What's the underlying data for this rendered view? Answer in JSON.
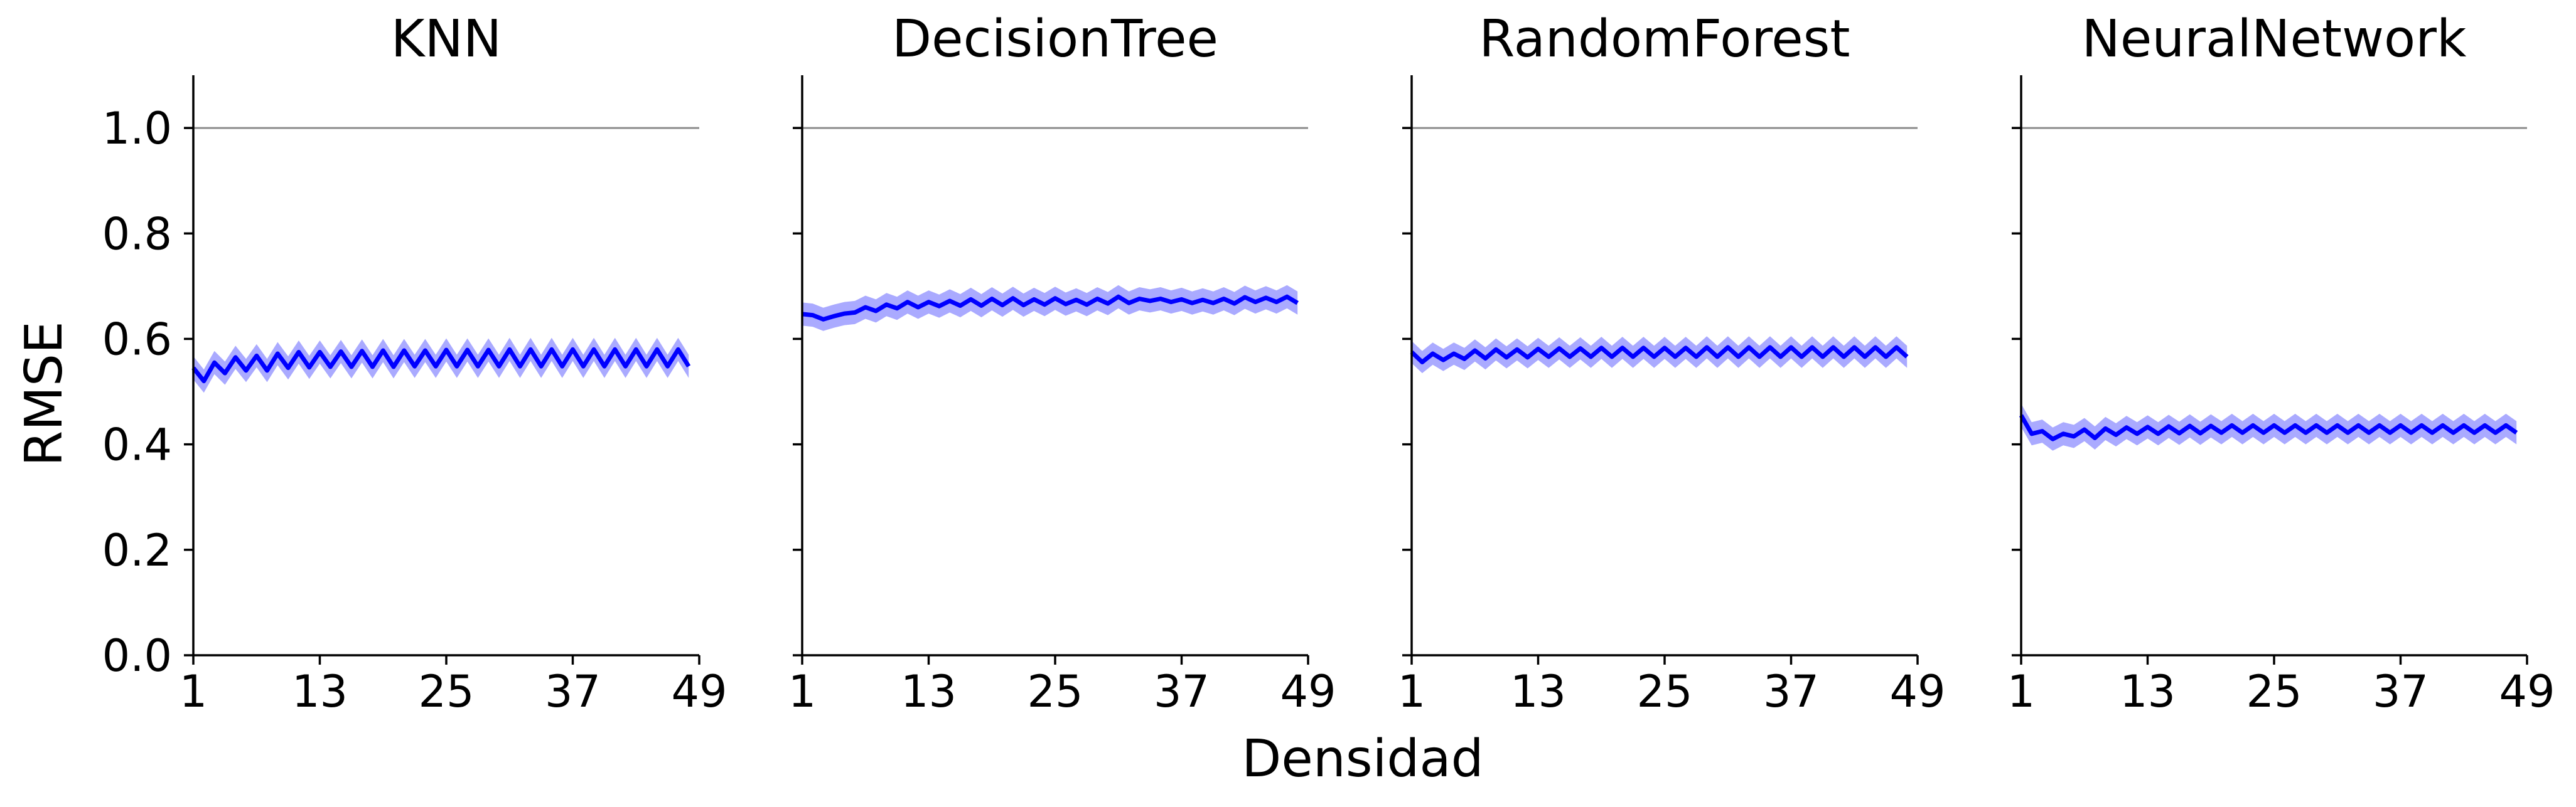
{
  "figure": {
    "xlabel": "Densidad",
    "ylabel": "RMSE",
    "colors": {
      "line": "#0000ff",
      "band": "#9b9bff",
      "reference": "#8c8c8c",
      "axis": "#000000"
    }
  },
  "chart_data": [
    {
      "type": "line",
      "title": "KNN",
      "xlabel": "Densidad",
      "ylabel": "RMSE",
      "xlim": [
        1,
        49
      ],
      "ylim": [
        0.0,
        1.1
      ],
      "xticks": [
        "1",
        "13",
        "25",
        "37",
        "49"
      ],
      "yticks": [
        "0.0",
        "0.2",
        "0.4",
        "0.6",
        "0.8",
        "1.0"
      ],
      "reference_line": 1.0,
      "grid": false,
      "x_start": 1,
      "x_step": 1,
      "series": [
        {
          "values": [
            0.545,
            0.52,
            0.555,
            0.535,
            0.565,
            0.54,
            0.568,
            0.54,
            0.572,
            0.545,
            0.575,
            0.546,
            0.575,
            0.547,
            0.576,
            0.547,
            0.577,
            0.547,
            0.578,
            0.547,
            0.578,
            0.548,
            0.578,
            0.548,
            0.579,
            0.548,
            0.579,
            0.548,
            0.579,
            0.548,
            0.58,
            0.548,
            0.58,
            0.548,
            0.58,
            0.548,
            0.58,
            0.548,
            0.58,
            0.548,
            0.58,
            0.548,
            0.58,
            0.548,
            0.58,
            0.548,
            0.58,
            0.548
          ],
          "band_halfwidth": 0.022
        }
      ]
    },
    {
      "type": "line",
      "title": "DecisionTree",
      "xlabel": "Densidad",
      "ylabel": "RMSE",
      "xlim": [
        1,
        49
      ],
      "ylim": [
        0.0,
        1.1
      ],
      "xticks": [
        "1",
        "13",
        "25",
        "37",
        "49"
      ],
      "yticks": [
        "0.0",
        "0.2",
        "0.4",
        "0.6",
        "0.8",
        "1.0"
      ],
      "reference_line": 1.0,
      "grid": false,
      "x_start": 1,
      "x_step": 1,
      "series": [
        {
          "values": [
            0.647,
            0.645,
            0.637,
            0.643,
            0.648,
            0.65,
            0.66,
            0.653,
            0.665,
            0.658,
            0.67,
            0.66,
            0.67,
            0.662,
            0.672,
            0.663,
            0.675,
            0.663,
            0.676,
            0.664,
            0.677,
            0.664,
            0.675,
            0.665,
            0.677,
            0.666,
            0.674,
            0.665,
            0.676,
            0.667,
            0.68,
            0.668,
            0.676,
            0.672,
            0.676,
            0.67,
            0.675,
            0.668,
            0.674,
            0.668,
            0.676,
            0.667,
            0.679,
            0.67,
            0.678,
            0.67,
            0.68,
            0.668
          ],
          "band_halfwidth": 0.022
        }
      ]
    },
    {
      "type": "line",
      "title": "RandomForest",
      "xlabel": "Densidad",
      "ylabel": "RMSE",
      "xlim": [
        1,
        49
      ],
      "ylim": [
        0.0,
        1.1
      ],
      "xticks": [
        "1",
        "13",
        "25",
        "37",
        "49"
      ],
      "yticks": [
        "0.0",
        "0.2",
        "0.4",
        "0.6",
        "0.8",
        "1.0"
      ],
      "reference_line": 1.0,
      "grid": false,
      "x_start": 1,
      "x_step": 1,
      "series": [
        {
          "values": [
            0.575,
            0.556,
            0.572,
            0.56,
            0.572,
            0.562,
            0.578,
            0.563,
            0.58,
            0.565,
            0.58,
            0.565,
            0.581,
            0.566,
            0.582,
            0.566,
            0.582,
            0.566,
            0.583,
            0.566,
            0.583,
            0.566,
            0.583,
            0.566,
            0.583,
            0.566,
            0.583,
            0.566,
            0.584,
            0.566,
            0.584,
            0.566,
            0.584,
            0.566,
            0.584,
            0.566,
            0.584,
            0.566,
            0.584,
            0.566,
            0.584,
            0.566,
            0.584,
            0.566,
            0.584,
            0.566,
            0.584,
            0.566
          ],
          "band_halfwidth": 0.021
        }
      ]
    },
    {
      "type": "line",
      "title": "NeuralNetwork",
      "xlabel": "Densidad",
      "ylabel": "RMSE",
      "xlim": [
        1,
        49
      ],
      "ylim": [
        0.0,
        1.1
      ],
      "xticks": [
        "1",
        "13",
        "25",
        "37",
        "49"
      ],
      "yticks": [
        "0.0",
        "0.2",
        "0.4",
        "0.6",
        "0.8",
        "1.0"
      ],
      "reference_line": 1.0,
      "grid": false,
      "x_start": 1,
      "x_step": 1,
      "series": [
        {
          "values": [
            0.455,
            0.42,
            0.425,
            0.41,
            0.42,
            0.415,
            0.428,
            0.412,
            0.43,
            0.418,
            0.432,
            0.42,
            0.433,
            0.42,
            0.434,
            0.421,
            0.435,
            0.421,
            0.435,
            0.422,
            0.436,
            0.422,
            0.436,
            0.422,
            0.436,
            0.422,
            0.436,
            0.422,
            0.436,
            0.422,
            0.436,
            0.422,
            0.436,
            0.422,
            0.436,
            0.422,
            0.436,
            0.422,
            0.436,
            0.422,
            0.436,
            0.422,
            0.436,
            0.422,
            0.436,
            0.422,
            0.436,
            0.422
          ],
          "band_halfwidth": 0.022
        }
      ]
    }
  ]
}
